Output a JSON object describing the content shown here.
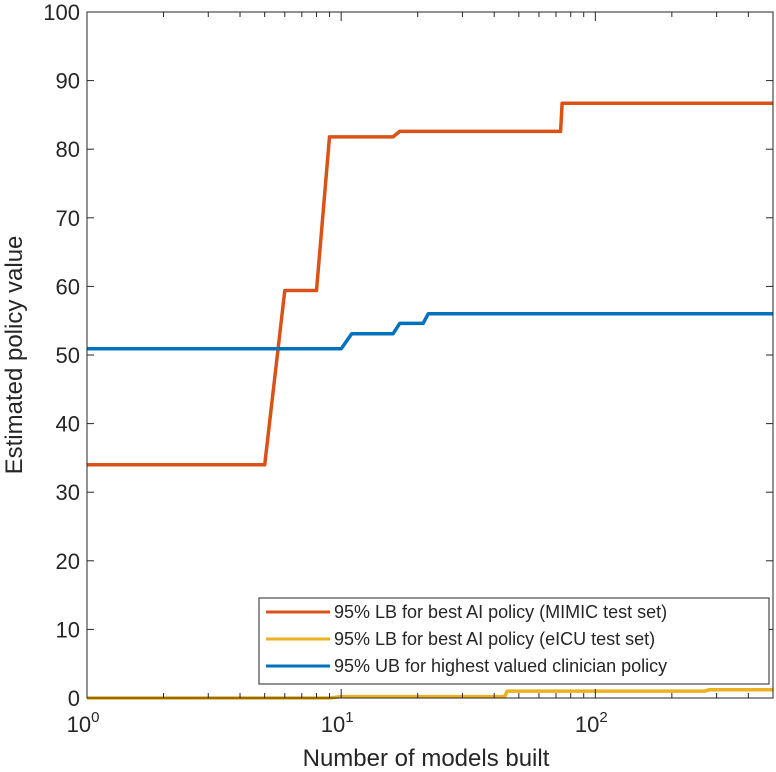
{
  "chart_data": {
    "type": "line",
    "xlabel": "Number of models built",
    "ylabel": "Estimated policy value",
    "xscale": "log",
    "xlim": [
      1,
      500
    ],
    "ylim": [
      0,
      100
    ],
    "x_ticks": [
      {
        "value": 1,
        "base": "10",
        "exp": "0"
      },
      {
        "value": 10,
        "base": "10",
        "exp": "1"
      },
      {
        "value": 100,
        "base": "10",
        "exp": "2"
      }
    ],
    "y_ticks": [
      0,
      10,
      20,
      30,
      40,
      50,
      60,
      70,
      80,
      90,
      100
    ],
    "y_tick_labels": [
      "0",
      "10",
      "20",
      "30",
      "40",
      "50",
      "60",
      "70",
      "80",
      "90",
      "100"
    ],
    "grid": false,
    "legend_position": "bottom-right",
    "series": [
      {
        "name": "95% LB for best AI policy (MIMIC test set)",
        "color": "#D95319",
        "points": [
          [
            1,
            34
          ],
          [
            5,
            34
          ],
          [
            6,
            59.4
          ],
          [
            8,
            59.4
          ],
          [
            9,
            81.8
          ],
          [
            16,
            81.8
          ],
          [
            17,
            82.6
          ],
          [
            73,
            82.6
          ],
          [
            74,
            86.7
          ],
          [
            500,
            86.7
          ]
        ]
      },
      {
        "name": "95% LB for best AI policy (eICU test set)",
        "color": "#EDB120",
        "points": [
          [
            1,
            0
          ],
          [
            9,
            0
          ],
          [
            10,
            0.2
          ],
          [
            44,
            0.2
          ],
          [
            45,
            1.0
          ],
          [
            270,
            1.0
          ],
          [
            280,
            1.2
          ],
          [
            500,
            1.2
          ]
        ]
      },
      {
        "name": "95% UB for highest valued clinician policy",
        "color": "#0072BD",
        "points": [
          [
            1,
            50.9
          ],
          [
            10,
            50.9
          ],
          [
            11,
            53.1
          ],
          [
            16,
            53.1
          ],
          [
            17,
            54.6
          ],
          [
            21,
            54.6
          ],
          [
            22,
            56.0
          ],
          [
            500,
            56.0
          ]
        ]
      }
    ]
  }
}
